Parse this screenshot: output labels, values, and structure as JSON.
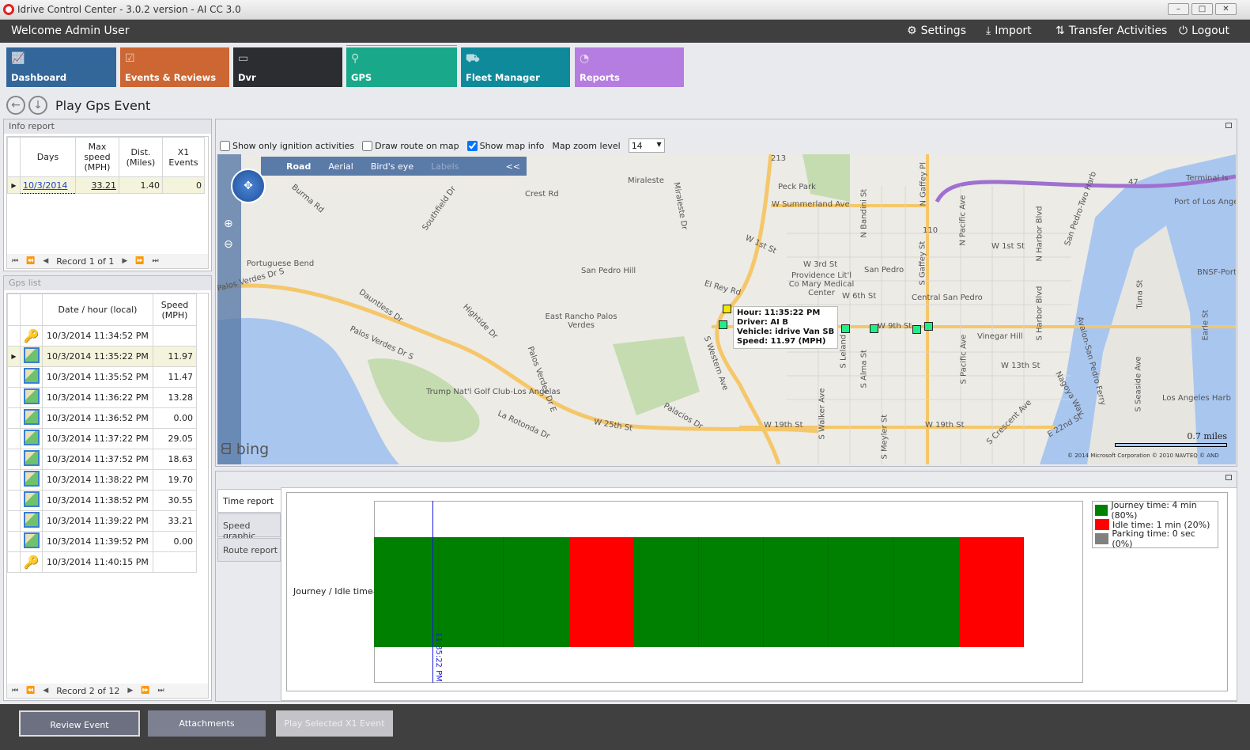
{
  "window": {
    "title": "Idrive Control Center - 3.0.2 version - AI CC 3.0",
    "minimize": "–",
    "maximize": "□",
    "close": "✕"
  },
  "header": {
    "welcome": "Welcome Admin User",
    "settings": "Settings",
    "import": "Import",
    "transfer": "Transfer Activities",
    "logout": "Logout"
  },
  "tiles": [
    {
      "label": "Dashboard",
      "color": "#336699",
      "icon": "chart-icon"
    },
    {
      "label": "Events & Reviews",
      "color": "#cc6633",
      "icon": "clipboard-icon"
    },
    {
      "label": "Dvr",
      "color": "#2b2d31",
      "icon": "dvr-icon"
    },
    {
      "label": "GPS",
      "color": "#1aa88a",
      "icon": "map-pin-icon",
      "selected": true
    },
    {
      "label": "Fleet Manager",
      "color": "#0f8a9a",
      "icon": "trucks-icon"
    },
    {
      "label": "Reports",
      "color": "#b57de0",
      "icon": "pie-icon"
    }
  ],
  "page": {
    "title": "Play Gps Event"
  },
  "info_report": {
    "title": "Info report",
    "columns": [
      "Days",
      "Max speed (MPH)",
      "Dist. (Miles)",
      "X1 Events"
    ],
    "rows": [
      {
        "day": "10/3/2014",
        "max_speed": "33.21",
        "dist": "1.40",
        "x1": "0"
      }
    ],
    "record": "Record 1 of 1"
  },
  "gps_list": {
    "title": "Gps list",
    "columns": [
      "Date / hour (local)",
      "Speed (MPH)"
    ],
    "record": "Record 2 of 12",
    "selected_index": 1,
    "rows": [
      {
        "icon": "ignition-on-icon",
        "time": "10/3/2014 11:34:52 PM",
        "speed": ""
      },
      {
        "icon": "gps-point-icon",
        "time": "10/3/2014 11:35:22 PM",
        "speed": "11.97"
      },
      {
        "icon": "gps-point-icon",
        "time": "10/3/2014 11:35:52 PM",
        "speed": "11.47"
      },
      {
        "icon": "gps-point-icon",
        "time": "10/3/2014 11:36:22 PM",
        "speed": "13.28"
      },
      {
        "icon": "gps-point-icon",
        "time": "10/3/2014 11:36:52 PM",
        "speed": "0.00"
      },
      {
        "icon": "gps-point-icon",
        "time": "10/3/2014 11:37:22 PM",
        "speed": "29.05"
      },
      {
        "icon": "gps-point-icon",
        "time": "10/3/2014 11:37:52 PM",
        "speed": "18.63"
      },
      {
        "icon": "gps-point-icon",
        "time": "10/3/2014 11:38:22 PM",
        "speed": "19.70"
      },
      {
        "icon": "gps-point-icon",
        "time": "10/3/2014 11:38:52 PM",
        "speed": "30.55"
      },
      {
        "icon": "gps-point-icon",
        "time": "10/3/2014 11:39:22 PM",
        "speed": "33.21"
      },
      {
        "icon": "gps-point-icon",
        "time": "10/3/2014 11:39:52 PM",
        "speed": "0.00"
      },
      {
        "icon": "ignition-off-icon",
        "time": "10/3/2014 11:40:15 PM",
        "speed": ""
      }
    ]
  },
  "map_options": {
    "ignition_only": {
      "label": "Show only ignition activities",
      "checked": false
    },
    "draw_route": {
      "label": "Draw route on map",
      "checked": false
    },
    "show_info": {
      "label": "Show map info",
      "checked": true
    },
    "zoom_label": "Map zoom level",
    "zoom_value": "14"
  },
  "map": {
    "modes": [
      "Road",
      "Aerial",
      "Bird's eye",
      "Labels"
    ],
    "active_mode": "Road",
    "collapse": "<<",
    "brand": "bing",
    "scale": "0.7 miles",
    "copyright": "© 2014 Microsoft Corporation   © 2010 NAVTEQ   © AND",
    "labels": [
      "Miraleste",
      "Peck Park",
      "W Summerland Ave",
      "Crest Rd",
      "Burma Rd",
      "Southfield Dr",
      "Miraleste Dr",
      "W 1st St",
      "Portuguese Bend",
      "Palos Verdes Dr S",
      "San Pedro Hill",
      "El Rey Rd",
      "W 3rd St",
      "San Pedro",
      "Providence Lit'l Co Mary Medical Center",
      "W 6th St",
      "Central San Pedro",
      "Dauntless Dr",
      "Hightide Dr",
      "East Rancho Palos Verdes",
      "Palos Verdes Dr S",
      "Palos Verdes Dr E",
      "Trump Nat'l Golf Club-Los Angelas",
      "La Rotonda Dr",
      "W 25th St",
      "Palacios Dr",
      "S Western Ave",
      "W 9th St",
      "Vinegar Hill",
      "W 13th St",
      "W 19th St",
      "W 19th St",
      "S Gaffey St",
      "S Pacific Ave",
      "N Gaffey Pl",
      "N Bandini St",
      "N Pacific Ave",
      "N Harbor Blvd",
      "W 1st St",
      "S Harbor Blvd",
      "Port of Los Angeles",
      "BNSF-Port",
      "Terminal Is",
      "Los Angeles Harb",
      "E 22nd St",
      "S Crescent Ave",
      "S Seaside Ave",
      "Tuna St",
      "Earle St",
      "Nagoya Way",
      "San Pedro-Two Harb",
      "Avalon-San Pedro Ferry",
      "S Leland",
      "S Alma St",
      "S Walker Ave",
      "S Meyler St",
      "110",
      "47",
      "213"
    ]
  },
  "tooltip": {
    "hour": "Hour: 11:35:22 PM",
    "driver": "Driver: AI B",
    "vehicle": "Vehicle: idrive Van SB",
    "speed": "Speed: 11.97 (MPH)"
  },
  "report_tabs": [
    "Time report",
    "Speed graphic",
    "Route report"
  ],
  "chart_data": {
    "type": "bar",
    "orientation": "horizontal-stacked-timeline",
    "category": "Journey / Idle time",
    "segments": [
      "journey",
      "journey",
      "journey",
      "idle",
      "journey",
      "journey",
      "journey",
      "journey",
      "journey",
      "idle"
    ],
    "segment_duration_sec": 30,
    "cursor_label": "11:35:22 PM",
    "cursor_segment": 1,
    "colors": {
      "journey": "#008000",
      "idle": "#ff0000",
      "parking": "#808080"
    },
    "legend": [
      {
        "key": "journey",
        "label": "Journey time: 4 min (80%)"
      },
      {
        "key": "idle",
        "label": "Idle time: 1 min (20%)"
      },
      {
        "key": "parking",
        "label": "Parking time: 0 sec (0%)"
      }
    ],
    "legend_position": "right"
  },
  "footer": {
    "review": "Review Event",
    "attachments": "Attachments",
    "play": "Play Selected X1 Event"
  }
}
